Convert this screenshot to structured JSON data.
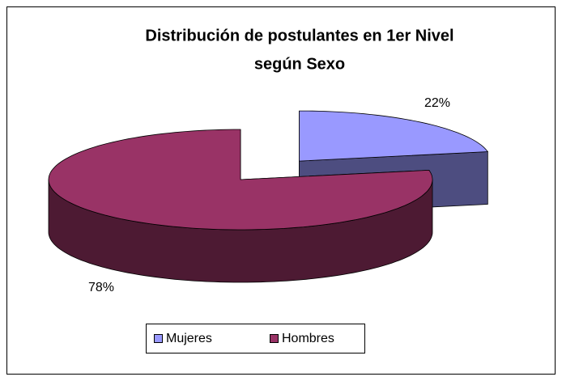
{
  "chart_data": {
    "type": "pie",
    "title": "Distribución de postulantes en 1er Nivel según Sexo",
    "title_lines": [
      "Distribución de postulantes en 1er Nivel",
      "según Sexo"
    ],
    "categories": [
      "Mujeres",
      "Hombres"
    ],
    "values": [
      22,
      78
    ],
    "value_labels": [
      "22%",
      "78%"
    ],
    "colors": [
      "#9999ff",
      "#993366"
    ],
    "side_colors": [
      "#4d4d80",
      "#4d1a33"
    ],
    "legend": "bottom"
  }
}
